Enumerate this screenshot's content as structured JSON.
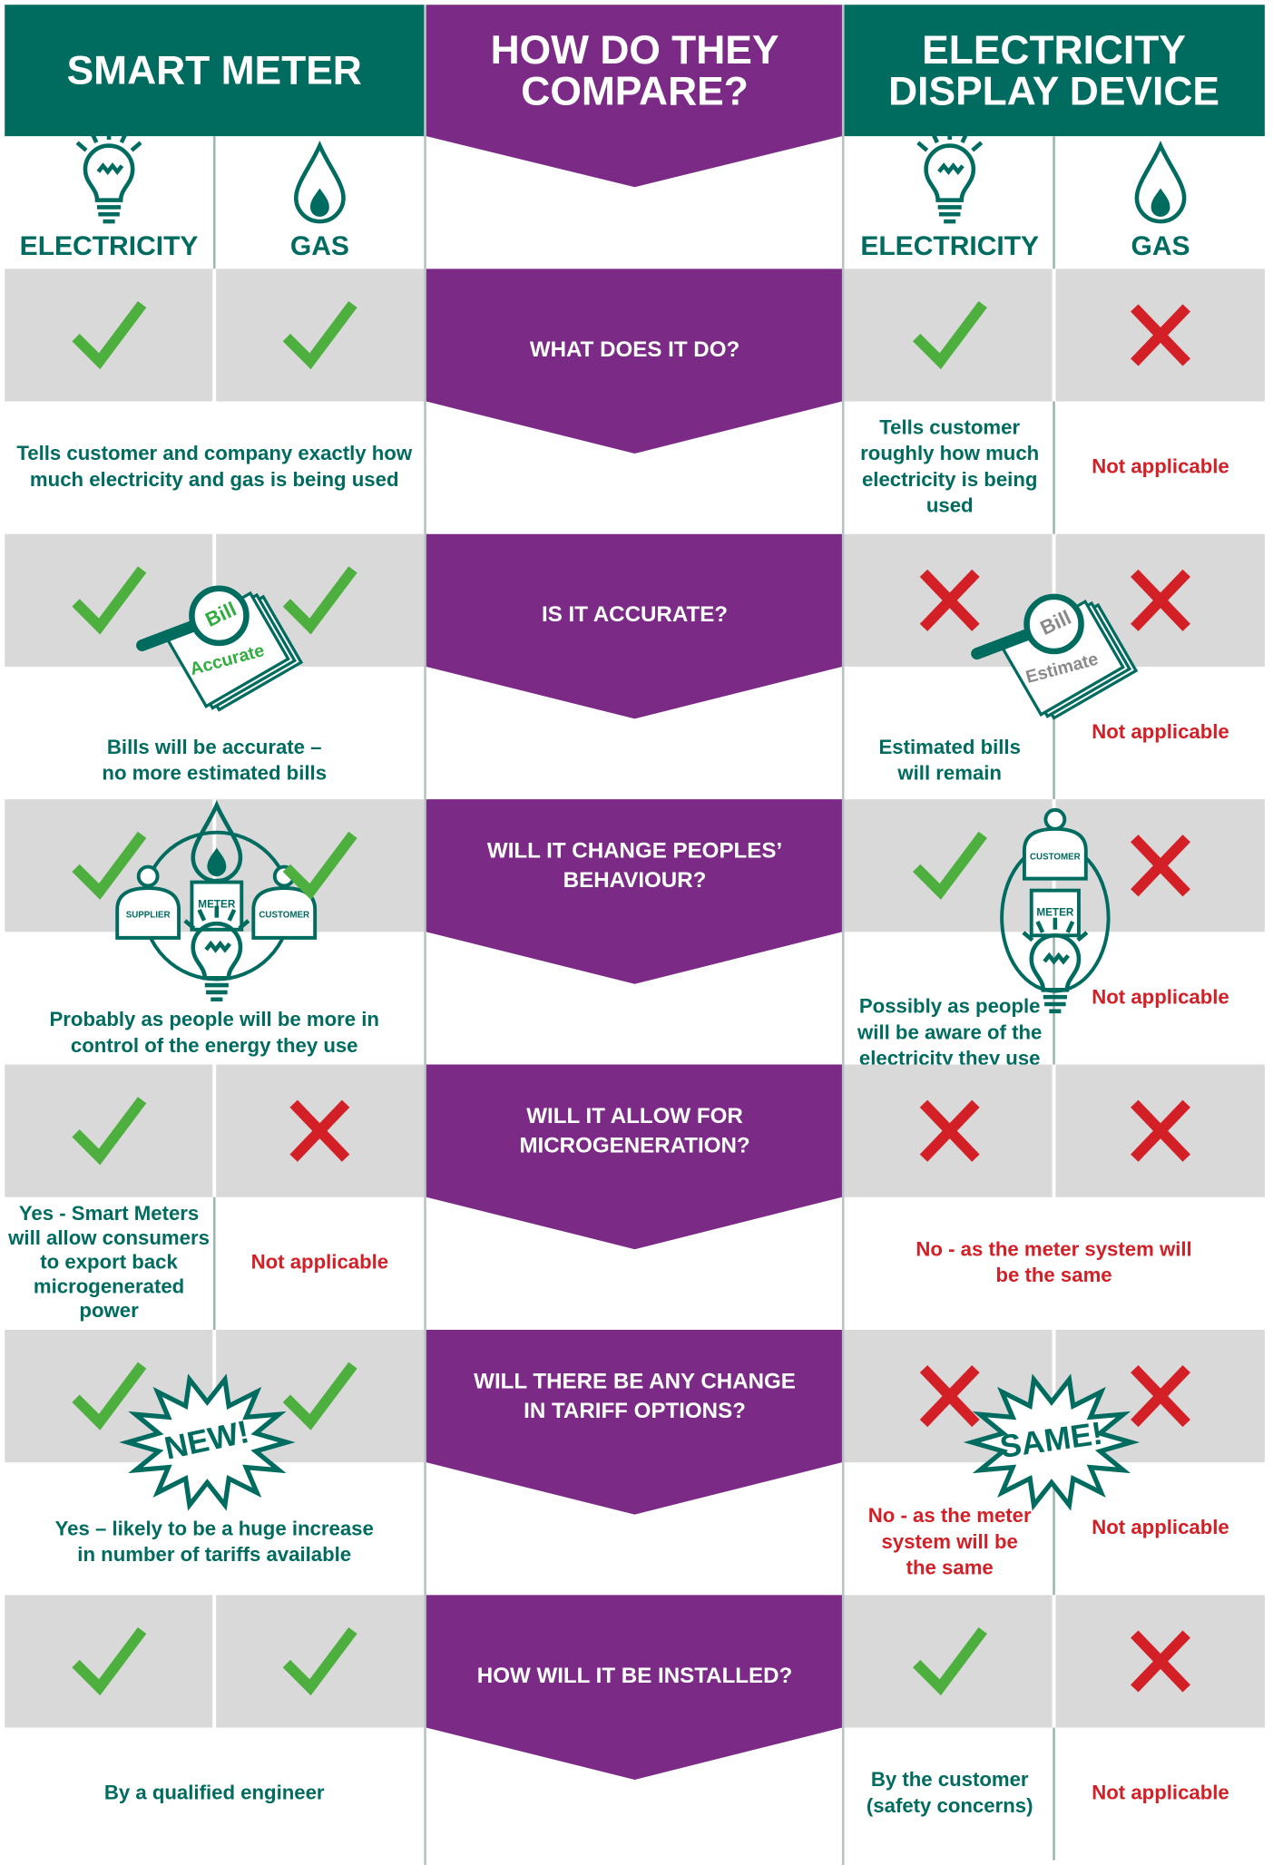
{
  "header": {
    "smart_meter": "SMART METER",
    "center": [
      "HOW DO THEY",
      "COMPARE?"
    ],
    "display_device": [
      "ELECTRICITY",
      "DISPLAY DEVICE"
    ]
  },
  "subheader": [
    "ELECTRICITY",
    "GAS",
    "ELECTRICITY",
    "GAS"
  ],
  "rows": [
    {
      "question": [
        "WHAT DOES IT DO?"
      ],
      "smart_meter": {
        "text": [
          "Tells customer and company exactly how",
          "much electricity and gas is being used"
        ]
      },
      "display_device": {
        "electricity": [
          "Tells customer",
          "roughly how much",
          "electricity is being",
          "used"
        ],
        "gas": [
          "Not applicable"
        ]
      }
    },
    {
      "question": [
        "IS IT ACCURATE?"
      ],
      "smart_meter": {
        "text": [
          "Bills will be accurate –",
          "no more estimated bills"
        ],
        "illustration": [
          "Bill",
          "Accurate"
        ]
      },
      "display_device": {
        "electricity": [
          "Estimated bills",
          "will remain"
        ],
        "gas": [
          "Not applicable"
        ],
        "illustration": [
          "Bill",
          "Estimate"
        ]
      }
    },
    {
      "question": [
        "WILL IT CHANGE PEOPLES’",
        "BEHAVIOUR?"
      ],
      "smart_meter": {
        "text": [
          "Probably as people will be more in",
          "control of the energy they use"
        ],
        "illustration": [
          "SUPPLIER",
          "METER",
          "CUSTOMER"
        ]
      },
      "display_device": {
        "electricity": [
          "Possibly as people",
          "will be aware of the",
          "electricity they use"
        ],
        "gas": [
          "Not applicable"
        ],
        "illustration": [
          "CUSTOMER",
          "METER"
        ]
      }
    },
    {
      "question": [
        "WILL IT ALLOW FOR",
        "MICROGENERATION?"
      ],
      "smart_meter": {
        "electricity": [
          "Yes - Smart Meters",
          "will allow consumers",
          "to export back",
          "microgenerated",
          "power"
        ],
        "gas": [
          "Not applicable"
        ]
      },
      "display_device": {
        "text": [
          "No - as the meter system will",
          "be the same"
        ]
      }
    },
    {
      "question": [
        "WILL THERE BE ANY CHANGE",
        "IN TARIFF OPTIONS?"
      ],
      "smart_meter": {
        "text": [
          "Yes – likely to be a huge increase",
          "in number of tariffs available"
        ],
        "illustration": [
          "NEW!"
        ]
      },
      "display_device": {
        "electricity": [
          "No - as the meter",
          "system will be",
          "the same"
        ],
        "gas": [
          "Not applicable"
        ],
        "illustration": [
          "SAME!"
        ]
      }
    },
    {
      "question": [
        "HOW WILL IT BE INSTALLED?"
      ],
      "smart_meter": {
        "text": [
          "By a qualified engineer"
        ]
      },
      "display_device": {
        "electricity": [
          "By the customer",
          "(safety concerns)"
        ],
        "gas": [
          "Not applicable"
        ]
      }
    }
  ]
}
